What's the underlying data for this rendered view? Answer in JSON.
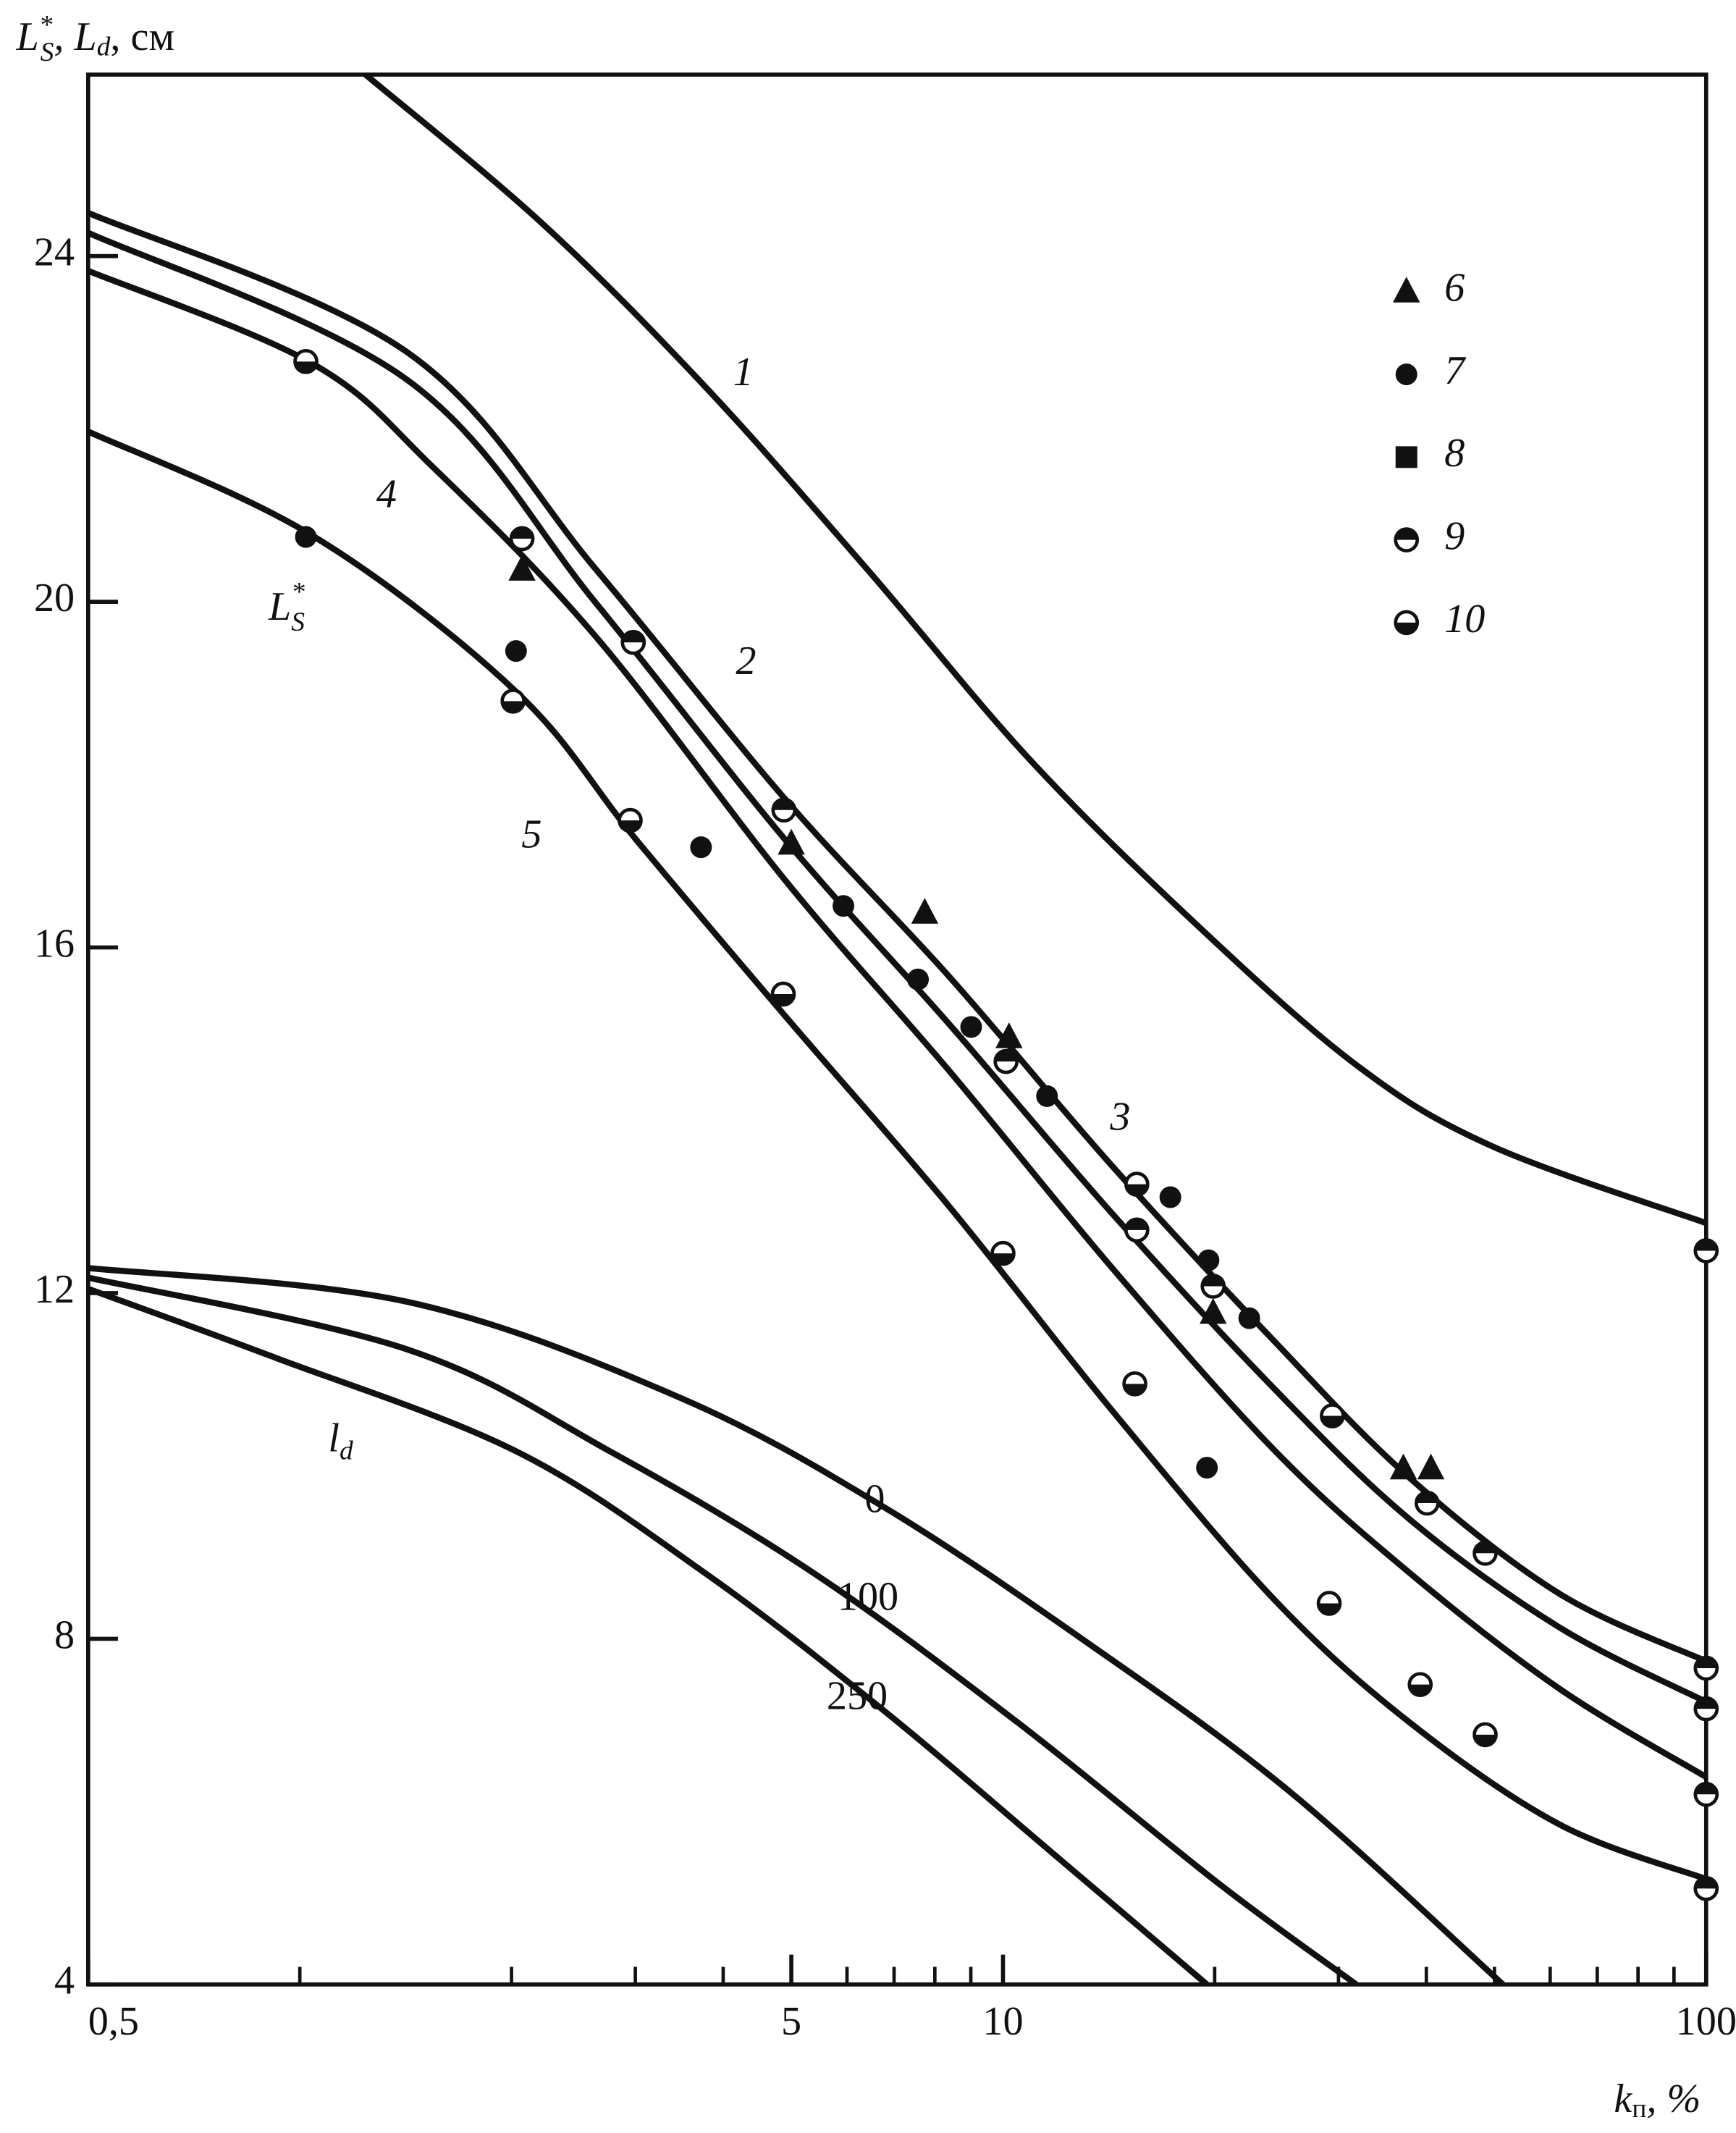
{
  "chart_data": {
    "type": "line",
    "xscale": "log",
    "y_label": [
      "L",
      "*",
      "S",
      ", L",
      "d",
      ", см"
    ],
    "x_label": [
      "k",
      "п",
      ", %"
    ],
    "xlim": [
      0.5,
      100
    ],
    "ylim": [
      4,
      26.1
    ],
    "xticks": [
      {
        "value": 0.5,
        "label": "0,5"
      },
      5,
      10,
      100
    ],
    "xminorticks": [
      1,
      2,
      3,
      4,
      6,
      7,
      8,
      9,
      20,
      30,
      40,
      50,
      60,
      70,
      80,
      90
    ],
    "yticks": [
      4,
      8,
      12,
      16,
      20,
      24
    ],
    "color": "#111",
    "series": [
      {
        "name": "1",
        "x": [
          1.24,
          2.21,
          3.77,
          6.42,
          10.9,
          18.7,
          31.8,
          49.6,
          100
        ],
        "values": [
          26.1,
          24.38,
          22.49,
          20.37,
          18.18,
          16.29,
          14.64,
          13.7,
          12.81
        ]
      },
      {
        "name": "2",
        "x": [
          0.5,
          1.42,
          2.64,
          4.92,
          8.39,
          14.3,
          24.4,
          37.9,
          61.9,
          100
        ],
        "values": [
          24.5,
          22.89,
          20.37,
          17.7,
          15.66,
          13.47,
          11.43,
          9.86,
          8.52,
          7.74
        ]
      },
      {
        "name": "3",
        "x": [
          0.5,
          1.42,
          2.64,
          4.92,
          8.39,
          14.3,
          24.4,
          37.9,
          61.9,
          100
        ],
        "values": [
          24.27,
          22.57,
          19.98,
          17.23,
          15.11,
          12.92,
          10.88,
          9.38,
          8.13,
          7.27
        ]
      },
      {
        "name": "4",
        "x": [
          0.5,
          1.04,
          1.55,
          2.64,
          4.92,
          8.39,
          14.3,
          24.4,
          37.9,
          61.9,
          100
        ],
        "values": [
          23.83,
          22.76,
          21.55,
          19.59,
          16.76,
          14.57,
          12.29,
          10.17,
          8.76,
          7.42,
          6.4
        ]
      },
      {
        "name": "5",
        "x": [
          0.5,
          1.04,
          2.03,
          3.02,
          4.92,
          8.39,
          14.3,
          24.4,
          37.9,
          61.9,
          100
        ],
        "values": [
          21.97,
          20.77,
          18.96,
          17.23,
          15.19,
          13.0,
          10.64,
          8.44,
          7.03,
          5.85,
          5.22
        ]
      },
      {
        "name": "0",
        "x": [
          0.5,
          1.42,
          3.45,
          6.72,
          13.1,
          25.5,
          51.4
        ],
        "values": [
          12.29,
          11.9,
          10.8,
          9.54,
          7.97,
          6.24,
          4
        ]
      },
      {
        "name": "100",
        "x": [
          0.5,
          1.42,
          2.76,
          5.38,
          10.5,
          20.4,
          31.8
        ],
        "values": [
          12.18,
          11.35,
          10.17,
          8.76,
          7.03,
          5.15,
          4
        ]
      },
      {
        "name": "250",
        "x": [
          0.5,
          0.911,
          2.03,
          3.77,
          6.72,
          12.0,
          19.5
        ],
        "values": [
          12.05,
          11.27,
          10.17,
          8.76,
          7.19,
          5.46,
          4
        ]
      }
    ],
    "marker_series": [
      {
        "name": "6",
        "marker": "triangle",
        "x": [
          2.07,
          5.0,
          7.74,
          10.2,
          19.9,
          37.1,
          40.6
        ],
        "values": [
          20.37,
          17.2,
          16.4,
          14.96,
          11.77,
          9.97,
          9.97
        ]
      },
      {
        "name": "7",
        "marker": "circle",
        "x": [
          1.02,
          2.03,
          3.72,
          5.93,
          7.57,
          9.01,
          11.55,
          17.3,
          19.6,
          22.4,
          19.5
        ],
        "values": [
          20.75,
          19.43,
          17.16,
          16.48,
          15.63,
          15.08,
          14.28,
          13.11,
          12.38,
          11.71,
          9.98
        ]
      },
      {
        "name": "8",
        "marker": "square",
        "x": [],
        "values": []
      },
      {
        "name": "9",
        "marker": "half-top",
        "x": [
          2.07,
          2.98,
          4.88,
          10.1,
          15.5,
          19.9,
          40.1,
          48.5,
          100,
          100,
          100,
          100,
          100
        ],
        "values": [
          20.73,
          19.53,
          17.59,
          14.68,
          12.73,
          12.08,
          9.57,
          8.99,
          12.49,
          7.66,
          7.19,
          6.2,
          5.11
        ]
      },
      {
        "name": "10",
        "marker": "half-bottom",
        "x": [
          1.02,
          2.01,
          2.95,
          4.87,
          10.0,
          15.4,
          29.4,
          29.1,
          39.2,
          48.5,
          15.5
        ],
        "values": [
          22.78,
          18.85,
          17.47,
          15.46,
          12.46,
          10.95,
          10.58,
          8.41,
          7.47,
          6.89,
          13.26
        ]
      }
    ],
    "annotations": [
      [
        "L",
        "*",
        "S"
      ],
      [
        "l",
        "d"
      ]
    ]
  }
}
